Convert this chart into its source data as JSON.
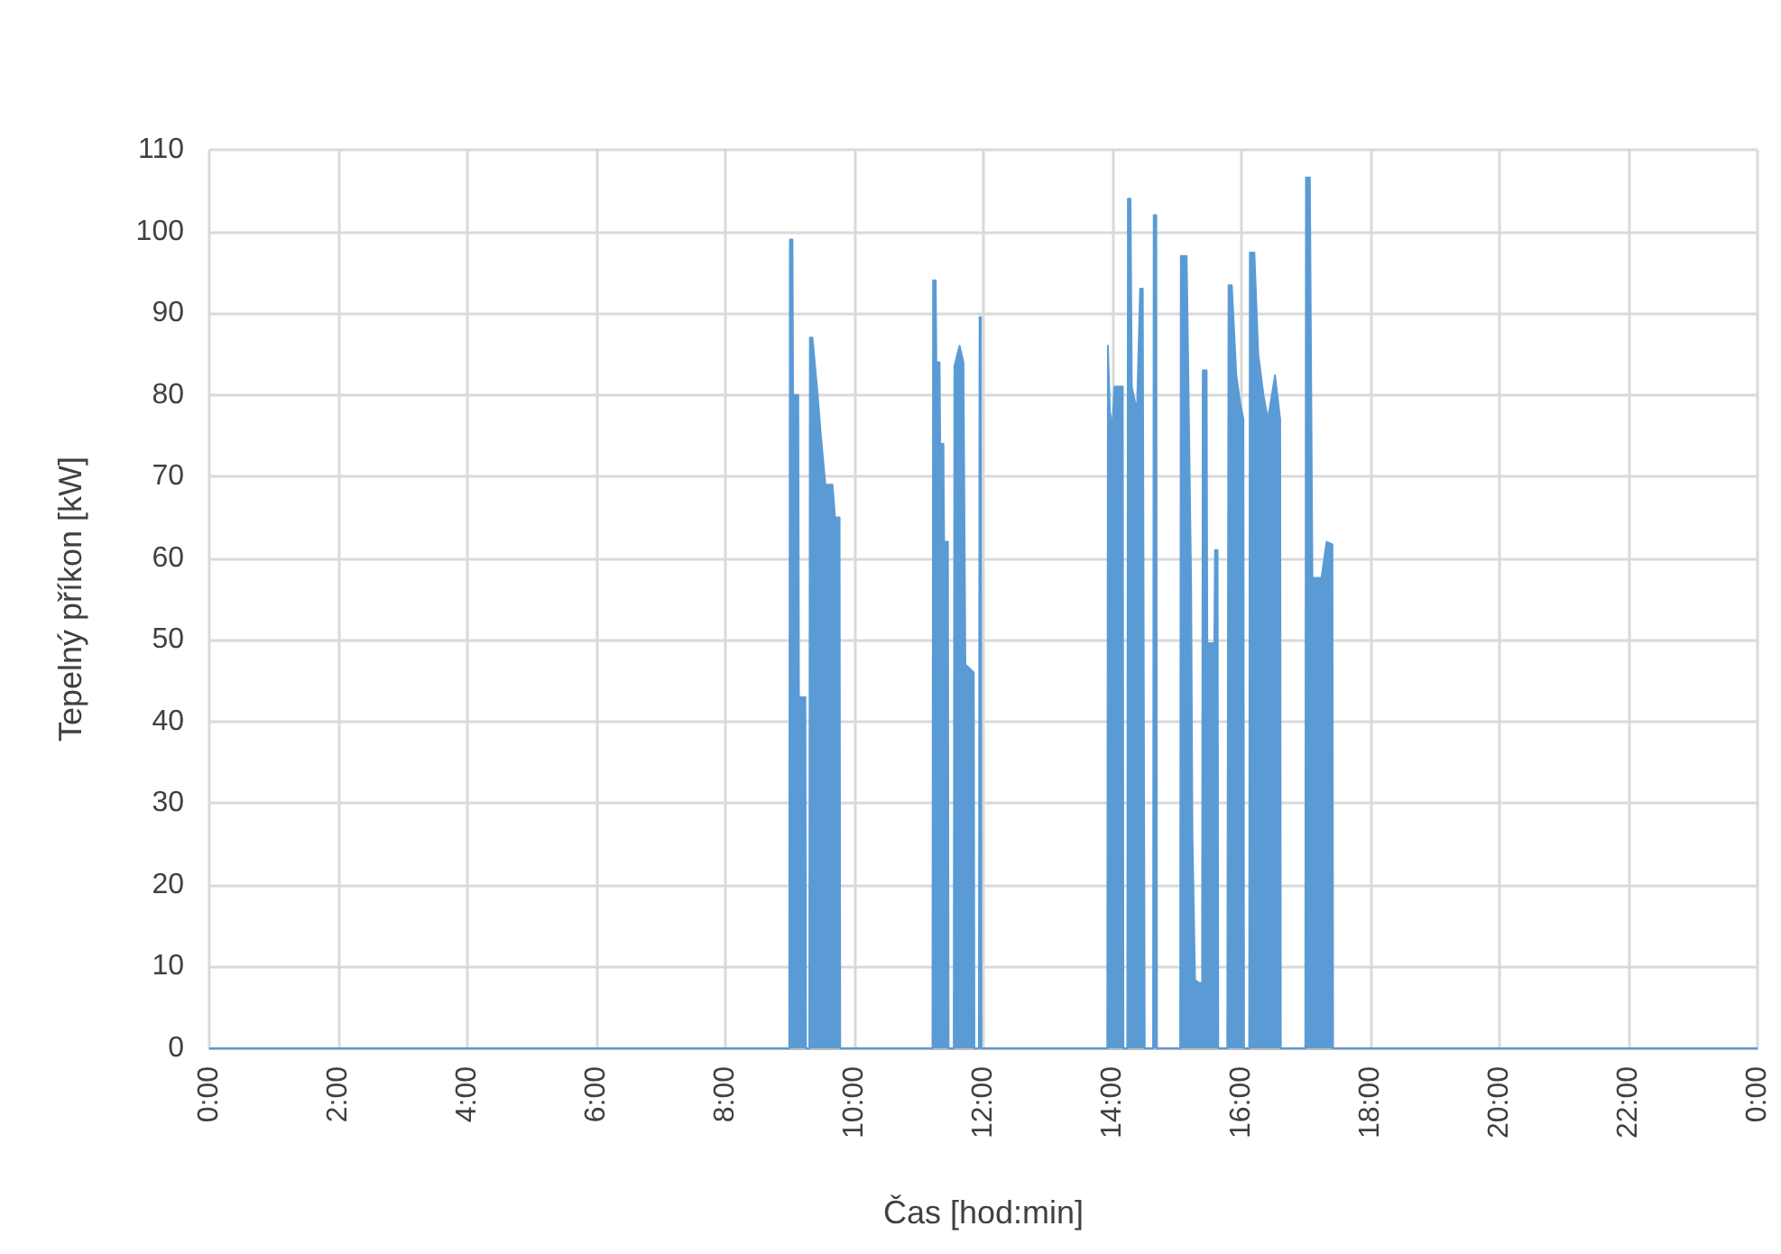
{
  "chart_data": {
    "type": "area",
    "xlabel": "Čas [hod:min]",
    "ylabel": "Tepelný příkon [kW]",
    "xlim": [
      0,
      24
    ],
    "ylim": [
      0,
      110
    ],
    "xticks": [
      {
        "value": 0,
        "label": "0:00"
      },
      {
        "value": 2,
        "label": "2:00"
      },
      {
        "value": 4,
        "label": "4:00"
      },
      {
        "value": 6,
        "label": "6:00"
      },
      {
        "value": 8,
        "label": "8:00"
      },
      {
        "value": 10,
        "label": "10:00"
      },
      {
        "value": 12,
        "label": "12:00"
      },
      {
        "value": 14,
        "label": "14:00"
      },
      {
        "value": 16,
        "label": "16:00"
      },
      {
        "value": 18,
        "label": "18:00"
      },
      {
        "value": 20,
        "label": "20:00"
      },
      {
        "value": 22,
        "label": "22:00"
      },
      {
        "value": 24,
        "label": "0:00"
      }
    ],
    "yticks": [
      0,
      10,
      20,
      30,
      40,
      50,
      60,
      70,
      80,
      90,
      100,
      110
    ],
    "grid": true,
    "series": [
      {
        "color": "#5b9bd5",
        "x": [
          0,
          8.99,
          9.0,
          9.04,
          9.05,
          9.13,
          9.14,
          9.24,
          9.25,
          9.3,
          9.31,
          9.35,
          9.43,
          9.48,
          9.55,
          9.66,
          9.7,
          9.77,
          9.78,
          11.21,
          11.22,
          11.26,
          11.27,
          11.32,
          11.33,
          11.38,
          11.39,
          11.45,
          11.46,
          11.54,
          11.55,
          11.63,
          11.69,
          11.72,
          11.85,
          11.86,
          11.93,
          11.94,
          11.96,
          11.97,
          13.92,
          13.93,
          13.96,
          14.0,
          14.03,
          14.16,
          14.17,
          14.23,
          14.24,
          14.28,
          14.3,
          14.38,
          14.43,
          14.47,
          14.5,
          14.63,
          14.64,
          14.68,
          14.69,
          15.05,
          15.06,
          15.15,
          15.17,
          15.22,
          15.24,
          15.28,
          15.34,
          15.39,
          15.4,
          15.46,
          15.47,
          15.58,
          15.59,
          15.63,
          15.64,
          15.78,
          15.8,
          15.85,
          15.92,
          15.98,
          16.03,
          16.04,
          16.12,
          16.13,
          16.2,
          16.26,
          16.34,
          16.41,
          16.52,
          16.6,
          16.61,
          16.99,
          17.0,
          17.06,
          17.1,
          17.24,
          17.32,
          17.41,
          17.42,
          24
        ],
        "values": [
          0,
          0,
          99,
          99,
          80,
          80,
          43,
          43,
          0,
          0,
          87,
          87,
          80,
          75,
          69,
          69,
          65,
          65,
          0,
          0,
          94,
          94,
          84,
          84,
          74,
          74,
          62,
          62,
          0,
          0,
          83.5,
          86,
          84,
          47,
          46,
          0,
          0,
          89.5,
          89.5,
          0,
          0,
          86,
          78,
          76,
          81,
          81,
          0,
          0,
          104,
          104,
          81,
          78,
          93,
          93,
          0,
          0,
          102,
          102,
          0,
          0,
          97,
          97,
          86,
          56.5,
          26,
          8.4,
          8,
          8,
          83,
          83,
          49.6,
          49.6,
          61,
          61,
          0,
          0,
          93.4,
          93.4,
          82.4,
          79,
          77,
          0,
          0,
          97.4,
          97.4,
          85,
          80,
          77,
          82.4,
          77,
          0,
          0,
          106.6,
          106.6,
          57.6,
          57.6,
          62,
          61.7,
          0,
          0
        ]
      }
    ]
  }
}
